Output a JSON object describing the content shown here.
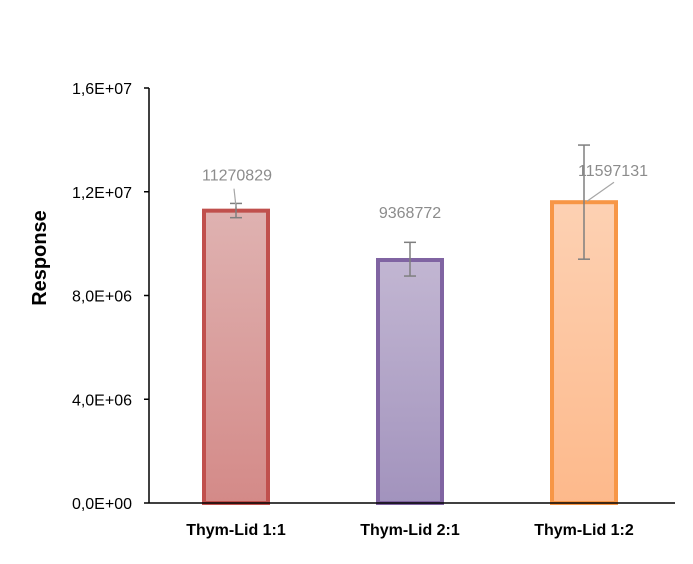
{
  "chart_data": {
    "type": "bar",
    "title": "",
    "xlabel": "",
    "ylabel": "Response",
    "ylim": [
      0,
      16000000
    ],
    "yticks": [
      0,
      4000000,
      8000000,
      12000000,
      16000000
    ],
    "ytick_labels": [
      "0,0E+00",
      "4,0E+06",
      "8,0E+06",
      "1,2E+07",
      "1,6E+07"
    ],
    "categories": [
      "Thym-Lid 1:1",
      "Thym-Lid 2:1",
      "Thym-Lid 1:2"
    ],
    "values": [
      11270829,
      9368772,
      11597131
    ],
    "data_labels": [
      "11270829",
      "9368772",
      "11597131"
    ],
    "error_bars": [
      {
        "low": 11000000,
        "high": 11550000
      },
      {
        "low": 8750000,
        "high": 10050000
      },
      {
        "low": 9400000,
        "high": 13800000
      }
    ],
    "colors": [
      {
        "top": "#dfb2b1",
        "bottom": "#d48a88",
        "edge": "#c0504d"
      },
      {
        "top": "#c2b6d2",
        "bottom": "#a293bd",
        "edge": "#8064a2"
      },
      {
        "top": "#fdd1b3",
        "bottom": "#fdb98b",
        "edge": "#f79646"
      }
    ],
    "grid": false,
    "legend": "none"
  }
}
